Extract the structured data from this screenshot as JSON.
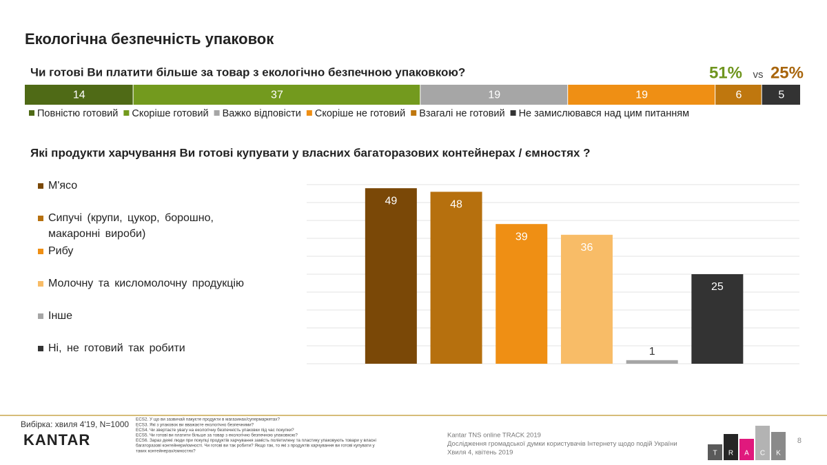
{
  "title": "Екологічна безпечність упаковок",
  "chart_data": [
    {
      "type": "stacked_bar",
      "title": "Чи готові Ви платити більше за товар з екологічно безпечною упаковкою?",
      "annotations": [
        "51%",
        "vs",
        "25%"
      ],
      "xlim": [
        0,
        100
      ],
      "series": [
        {
          "name": "Повністю готовий",
          "color": "#4f6a16",
          "values": [
            14
          ]
        },
        {
          "name": "Скоріше готовий",
          "color": "#739a1e",
          "values": [
            37
          ]
        },
        {
          "name": "Важко відповісти",
          "color": "#a6a6a6",
          "values": [
            19
          ]
        },
        {
          "name": "Скоріше не готовий",
          "color": "#ef8f14",
          "values": [
            19
          ]
        },
        {
          "name": "Взагалі не готовий",
          "color": "#bf770e",
          "values": [
            6
          ]
        },
        {
          "name": "Не замислювався над цим питанням",
          "color": "#333333",
          "values": [
            5
          ]
        }
      ]
    },
    {
      "type": "bar",
      "title": "Які продукти харчування Ви готові купувати у власних багаторазових контейнерах / ємностях ?",
      "categories": [
        "М'ясо",
        "Сипучі (крупи, цукор, борошно, макаронні вироби)",
        "Рибу",
        "Молочну та кисломолочну продукцію",
        "Інше",
        "Ні, не готовий так робити"
      ],
      "values": [
        49,
        48,
        39,
        36,
        1,
        25
      ],
      "colors": [
        "#7a4807",
        "#b6700e",
        "#ef8f14",
        "#f8bc67",
        "#a6a6a6",
        "#333333"
      ],
      "ylim": [
        0,
        50
      ],
      "yticks": [
        0,
        5,
        10,
        15,
        20,
        25,
        30,
        35,
        40,
        45,
        50
      ],
      "grid": true
    }
  ],
  "footer": {
    "sample": "Вибірка: хвиля 4'19, N=1000",
    "brand": "KANTAR",
    "footnotes": [
      "ECS2. У що ви зазвичай пакуєте продукти в магазинах/супермаркетах?",
      "ECS3. Які з упаковок ви вважаєте екологічно безпечними?",
      "ECS4. Чи звертаєте увагу на екологічну безпечність упаковки під час покупки?",
      "ECS5. Чи готові ви платити більше за товар з екологічно безпечною упаковкою?",
      "ECS6. Зараз деякі люди при покупці продуктів харчування замість поліетилену та пластику упаковують товари у власні",
      "багаторазові контейнери/ємності.   Чи готові ви так робити? Якщо так, то які з продуктів харчування  ви готові купувати у",
      "таких контейнерах/ємностях?"
    ],
    "study": [
      "Kantar TNS online TRACK 2019",
      "Дослідження громадської думки користувачів Інтернету щодо подій України",
      "Хвиля 4, квітень 2019"
    ],
    "logo_letters": [
      "T",
      "R",
      "A",
      "C",
      "K"
    ],
    "page": "8"
  }
}
